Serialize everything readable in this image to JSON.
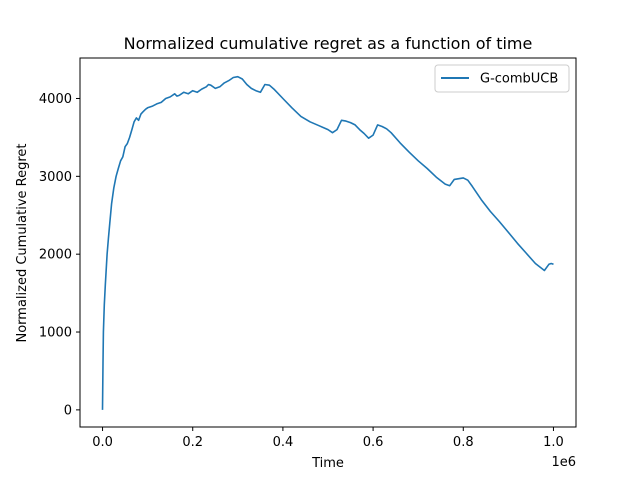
{
  "chart_data": {
    "type": "line",
    "title": "Normalized cumulative regret as a function of time",
    "xlabel": "Time",
    "ylabel": "Normalized Cumulative Regret",
    "x_offset_label": "1e6",
    "xlim": [
      -50000,
      1050000
    ],
    "ylim": [
      -220,
      4520
    ],
    "x_ticks": [
      0,
      0.2,
      0.4,
      0.6,
      0.8,
      1.0
    ],
    "x_tick_labels": [
      "0.0",
      "0.2",
      "0.4",
      "0.6",
      "0.8",
      "1.0"
    ],
    "y_ticks": [
      0,
      1000,
      2000,
      3000,
      4000
    ],
    "y_tick_labels": [
      "0",
      "1000",
      "2000",
      "3000",
      "4000"
    ],
    "grid": false,
    "legend_position": "top-right",
    "series": [
      {
        "name": "G-combUCB",
        "color": "#1f77b4",
        "x": [
          0,
          1000,
          2000,
          4000,
          6000,
          8000,
          10000,
          13000,
          16000,
          20000,
          25000,
          30000,
          35000,
          40000,
          45000,
          50000,
          55000,
          60000,
          65000,
          70000,
          75000,
          80000,
          85000,
          90000,
          95000,
          100000,
          110000,
          120000,
          130000,
          140000,
          150000,
          160000,
          165000,
          170000,
          180000,
          190000,
          200000,
          210000,
          220000,
          230000,
          235000,
          240000,
          250000,
          260000,
          270000,
          280000,
          290000,
          300000,
          310000,
          320000,
          330000,
          340000,
          350000,
          360000,
          370000,
          380000,
          400000,
          420000,
          440000,
          460000,
          480000,
          500000,
          510000,
          520000,
          530000,
          540000,
          550000,
          560000,
          570000,
          580000,
          590000,
          600000,
          610000,
          620000,
          630000,
          640000,
          660000,
          680000,
          700000,
          720000,
          740000,
          760000,
          770000,
          780000,
          790000,
          800000,
          810000,
          820000,
          840000,
          860000,
          880000,
          900000,
          920000,
          940000,
          960000,
          980000,
          990000,
          995000,
          1000000
        ],
        "y": [
          0,
          600,
          1000,
          1350,
          1600,
          1800,
          2000,
          2200,
          2400,
          2650,
          2850,
          3000,
          3100,
          3200,
          3250,
          3380,
          3420,
          3500,
          3600,
          3700,
          3750,
          3720,
          3800,
          3830,
          3860,
          3880,
          3900,
          3930,
          3950,
          4000,
          4020,
          4060,
          4030,
          4040,
          4080,
          4060,
          4100,
          4080,
          4120,
          4150,
          4180,
          4170,
          4130,
          4150,
          4200,
          4230,
          4270,
          4280,
          4250,
          4180,
          4130,
          4100,
          4080,
          4180,
          4170,
          4120,
          4000,
          3880,
          3770,
          3700,
          3650,
          3600,
          3560,
          3600,
          3720,
          3710,
          3690,
          3660,
          3600,
          3550,
          3490,
          3530,
          3660,
          3640,
          3610,
          3560,
          3430,
          3310,
          3200,
          3100,
          2990,
          2900,
          2880,
          2960,
          2970,
          2980,
          2950,
          2870,
          2700,
          2550,
          2420,
          2280,
          2140,
          2010,
          1880,
          1790,
          1870,
          1880,
          1870
        ]
      }
    ]
  }
}
